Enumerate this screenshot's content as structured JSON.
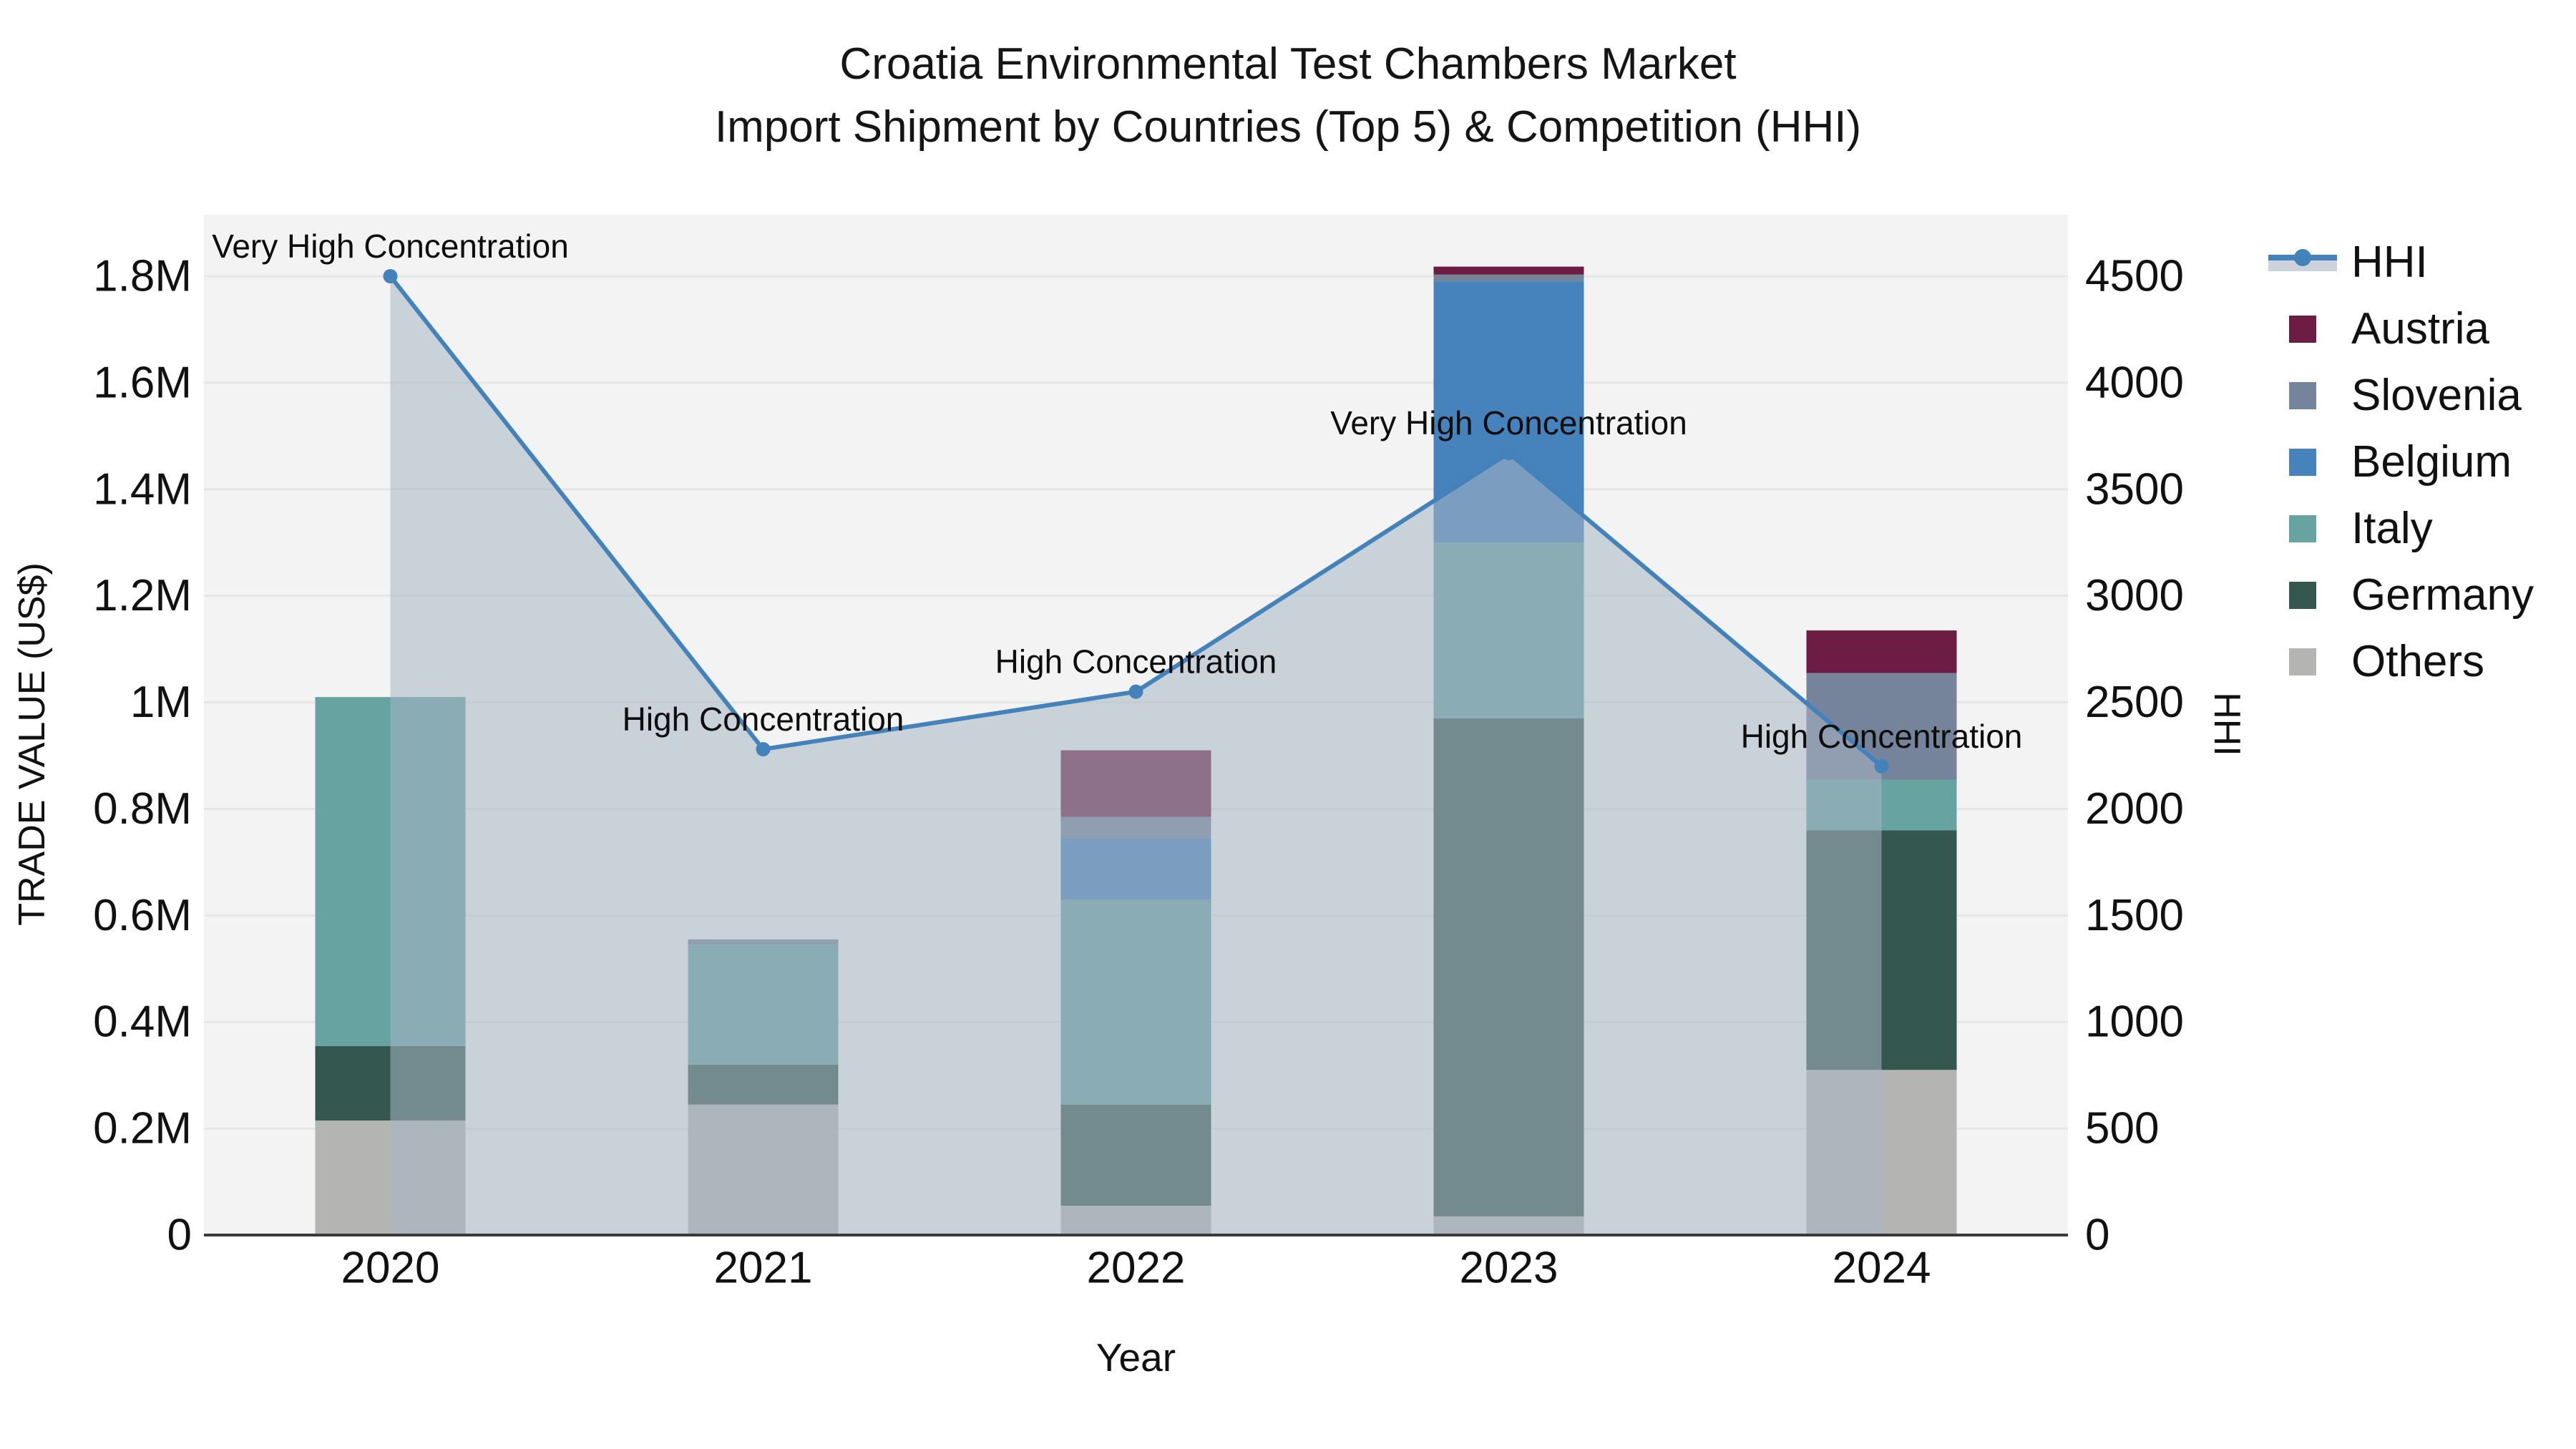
{
  "title": {
    "line1": "Croatia Environmental Test Chambers Market",
    "line2": "Import Shipment by Countries (Top 5) & Competition (HHI)"
  },
  "chart_data": {
    "type": "combo: stacked bars (left axis) + line with area fill (right axis)",
    "title": "Croatia Environmental Test Chambers Market — Import Shipment by Countries (Top 5) & Competition (HHI)",
    "xlabel": "Year",
    "ylabel_left": "TRADE VALUE (US$)",
    "ylabel_right": "HHI",
    "categories": [
      "2020",
      "2021",
      "2022",
      "2023",
      "2024"
    ],
    "bar_stack_order_bottom_to_top": [
      "Others",
      "Germany",
      "Italy",
      "Belgium",
      "Slovenia",
      "Austria"
    ],
    "series": [
      {
        "name": "Others",
        "color": "#b4b5b3",
        "values": [
          215000,
          245000,
          55000,
          35000,
          310000
        ]
      },
      {
        "name": "Germany",
        "color": "#34574f",
        "values": [
          140000,
          75000,
          190000,
          935000,
          450000
        ]
      },
      {
        "name": "Italy",
        "color": "#67a3a1",
        "values": [
          655000,
          225000,
          385000,
          330000,
          95000
        ]
      },
      {
        "name": "Belgium",
        "color": "#4682bb",
        "values": [
          0,
          0,
          115000,
          490000,
          0
        ]
      },
      {
        "name": "Slovenia",
        "color": "#75849a",
        "values": [
          0,
          10000,
          40000,
          13000,
          200000
        ]
      },
      {
        "name": "Austria",
        "color": "#6d1d43",
        "values": [
          0,
          0,
          125000,
          15000,
          80000
        ]
      }
    ],
    "bar_totals": [
      1010000,
      555000,
      910000,
      1818000,
      1135000
    ],
    "line_series": {
      "name": "HHI",
      "color": "#4382bb",
      "area_fill": "rgba(167,180,196,0.55)",
      "legend_band_color": "#cdd3dd",
      "values": [
        4500,
        2280,
        2550,
        3670,
        2200
      ]
    },
    "annotations": [
      {
        "x": "2020",
        "text": "Very High Concentration"
      },
      {
        "x": "2021",
        "text": "High Concentration"
      },
      {
        "x": "2022",
        "text": "High Concentration"
      },
      {
        "x": "2023",
        "text": "Very High Concentration"
      },
      {
        "x": "2024",
        "text": "High Concentration"
      }
    ],
    "y_left_ticks": [
      {
        "v": 0,
        "label": "0"
      },
      {
        "v": 200000,
        "label": "0.2M"
      },
      {
        "v": 400000,
        "label": "0.4M"
      },
      {
        "v": 600000,
        "label": "0.6M"
      },
      {
        "v": 800000,
        "label": "0.8M"
      },
      {
        "v": 1000000,
        "label": "1M"
      },
      {
        "v": 1200000,
        "label": "1.2M"
      },
      {
        "v": 1400000,
        "label": "1.4M"
      },
      {
        "v": 1600000,
        "label": "1.6M"
      },
      {
        "v": 1800000,
        "label": "1.8M"
      }
    ],
    "y_right_ticks": [
      {
        "v": 0,
        "label": "0"
      },
      {
        "v": 500,
        "label": "500"
      },
      {
        "v": 1000,
        "label": "1000"
      },
      {
        "v": 1500,
        "label": "1500"
      },
      {
        "v": 2000,
        "label": "2000"
      },
      {
        "v": 2500,
        "label": "2500"
      },
      {
        "v": 3000,
        "label": "3000"
      },
      {
        "v": 3500,
        "label": "3500"
      },
      {
        "v": 4000,
        "label": "4000"
      },
      {
        "v": 4500,
        "label": "4500"
      }
    ],
    "axis_ranges": {
      "left_max_tick": 1800000,
      "right_max_tick": 4500
    },
    "grid": true,
    "legend_position": "right",
    "colors": {
      "plot_background": "#f2f3f2",
      "gridline": "#e5e7e7",
      "axis_line": "#3b3b3b",
      "text": "#111111"
    }
  },
  "legend": {
    "items": [
      {
        "label": "HHI",
        "swatch": "line-area"
      },
      {
        "label": "Austria",
        "swatch": "box",
        "color": "#6d1d43"
      },
      {
        "label": "Slovenia",
        "swatch": "box",
        "color": "#75849a"
      },
      {
        "label": "Belgium",
        "swatch": "box",
        "color": "#4682bb"
      },
      {
        "label": "Italy",
        "swatch": "box",
        "color": "#67a3a1"
      },
      {
        "label": "Germany",
        "swatch": "box",
        "color": "#34574f"
      },
      {
        "label": "Others",
        "swatch": "box",
        "color": "#b4b5b3"
      }
    ]
  }
}
